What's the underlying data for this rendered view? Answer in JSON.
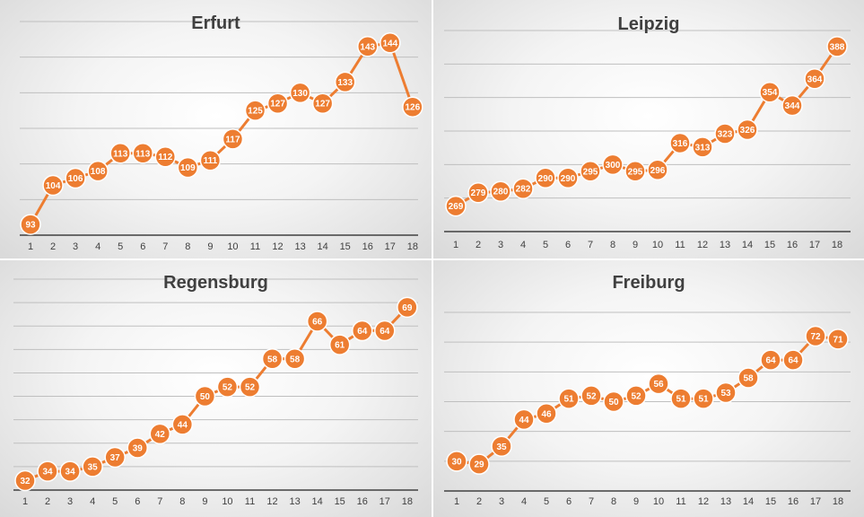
{
  "colors": {
    "series": "#ED7D31",
    "marker_border": "#ffffff",
    "gridline": "#bfbfbf",
    "axis": "#404040",
    "title": "#404040"
  },
  "chart_data": [
    {
      "type": "line",
      "title": "Erfurt",
      "categories": [
        "1",
        "2",
        "3",
        "4",
        "5",
        "6",
        "7",
        "8",
        "9",
        "10",
        "11",
        "12",
        "13",
        "14",
        "15",
        "16",
        "17",
        "18"
      ],
      "values": [
        93,
        104,
        106,
        108,
        113,
        113,
        112,
        109,
        111,
        117,
        125,
        127,
        130,
        127,
        133,
        143,
        144,
        126
      ],
      "ylim": [
        90,
        150
      ],
      "gridlines": [
        100,
        110,
        120,
        130,
        140,
        150
      ],
      "xlabel": "",
      "ylabel": "",
      "legend": "none"
    },
    {
      "type": "line",
      "title": "Leipzig",
      "categories": [
        "1",
        "2",
        "3",
        "4",
        "5",
        "6",
        "7",
        "8",
        "9",
        "10",
        "11",
        "12",
        "13",
        "14",
        "15",
        "16",
        "17",
        "18"
      ],
      "values": [
        269,
        279,
        280,
        282,
        290,
        290,
        295,
        300,
        295,
        296,
        316,
        313,
        323,
        326,
        354,
        344,
        364,
        388
      ],
      "ylim": [
        250,
        400
      ],
      "gridlines": [
        275,
        300,
        325,
        350,
        375,
        400
      ],
      "xlabel": "",
      "ylabel": "",
      "legend": "none"
    },
    {
      "type": "line",
      "title": "Regensburg",
      "categories": [
        "1",
        "2",
        "3",
        "4",
        "5",
        "6",
        "7",
        "8",
        "9",
        "10",
        "11",
        "12",
        "13",
        "14",
        "15",
        "16",
        "17",
        "18"
      ],
      "values": [
        32,
        34,
        34,
        35,
        37,
        39,
        42,
        44,
        50,
        52,
        52,
        58,
        58,
        66,
        61,
        64,
        64,
        69
      ],
      "ylim": [
        30,
        75
      ],
      "gridlines": [
        35,
        40,
        45,
        50,
        55,
        60,
        65,
        70,
        75
      ],
      "xlabel": "",
      "ylabel": "",
      "legend": "none"
    },
    {
      "type": "line",
      "title": "Freiburg",
      "categories": [
        "1",
        "2",
        "3",
        "4",
        "5",
        "6",
        "7",
        "8",
        "9",
        "10",
        "11",
        "12",
        "13",
        "14",
        "15",
        "16",
        "17",
        "18"
      ],
      "values": [
        30,
        29,
        35,
        44,
        46,
        51,
        52,
        50,
        52,
        56,
        51,
        51,
        53,
        58,
        64,
        64,
        72,
        71
      ],
      "ylim": [
        20,
        80
      ],
      "gridlines": [
        30,
        40,
        50,
        60,
        70,
        80
      ],
      "xlabel": "",
      "ylabel": "",
      "legend": "none"
    }
  ]
}
